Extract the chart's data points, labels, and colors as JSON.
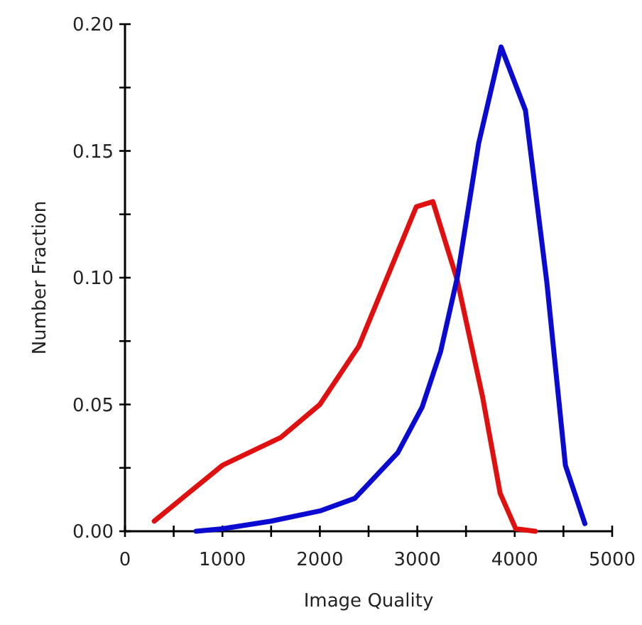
{
  "chart_data": {
    "type": "line",
    "xlabel": "Image Quality",
    "ylabel": "Number Fraction",
    "xlim": [
      0,
      5000
    ],
    "ylim": [
      0,
      0.2
    ],
    "xticks": [
      0,
      {
        "value": 500,
        "label": null
      },
      1000,
      {
        "value": 1500,
        "label": null
      },
      2000,
      {
        "value": 2500,
        "label": null
      },
      3000,
      {
        "value": 3500,
        "label": null
      },
      4000,
      {
        "value": 4500,
        "label": null
      },
      5000
    ],
    "yticks": [
      {
        "value": 0,
        "label": "0.00"
      },
      {
        "value": 0.025,
        "label": null
      },
      {
        "value": 0.05,
        "label": "0.05"
      },
      {
        "value": 0.075,
        "label": null
      },
      {
        "value": 0.1,
        "label": "0.10"
      },
      {
        "value": 0.125,
        "label": null
      },
      {
        "value": 0.15,
        "label": "0.15"
      },
      {
        "value": 0.175,
        "label": null
      },
      {
        "value": 0.2,
        "label": "0.20"
      }
    ],
    "grid": false,
    "marker": "none",
    "line_style": "solid",
    "series": [
      {
        "color": "#e01010",
        "x": [
          300,
          1000,
          1600,
          2000,
          2400,
          2990,
          3160,
          3410,
          3670,
          3850,
          4010,
          4210
        ],
        "values": [
          0.004,
          0.026,
          0.037,
          0.05,
          0.073,
          0.128,
          0.13,
          0.099,
          0.053,
          0.015,
          0.001,
          0.0
        ]
      },
      {
        "color": "#0a0ad0",
        "x": [
          730,
          1000,
          1500,
          2000,
          2360,
          2800,
          3050,
          3240,
          3410,
          3630,
          3860,
          4110,
          4330,
          4520,
          4720
        ],
        "values": [
          0.0,
          0.001,
          0.004,
          0.008,
          0.013,
          0.031,
          0.049,
          0.071,
          0.1,
          0.153,
          0.191,
          0.166,
          0.098,
          0.026,
          0.003
        ]
      }
    ]
  }
}
